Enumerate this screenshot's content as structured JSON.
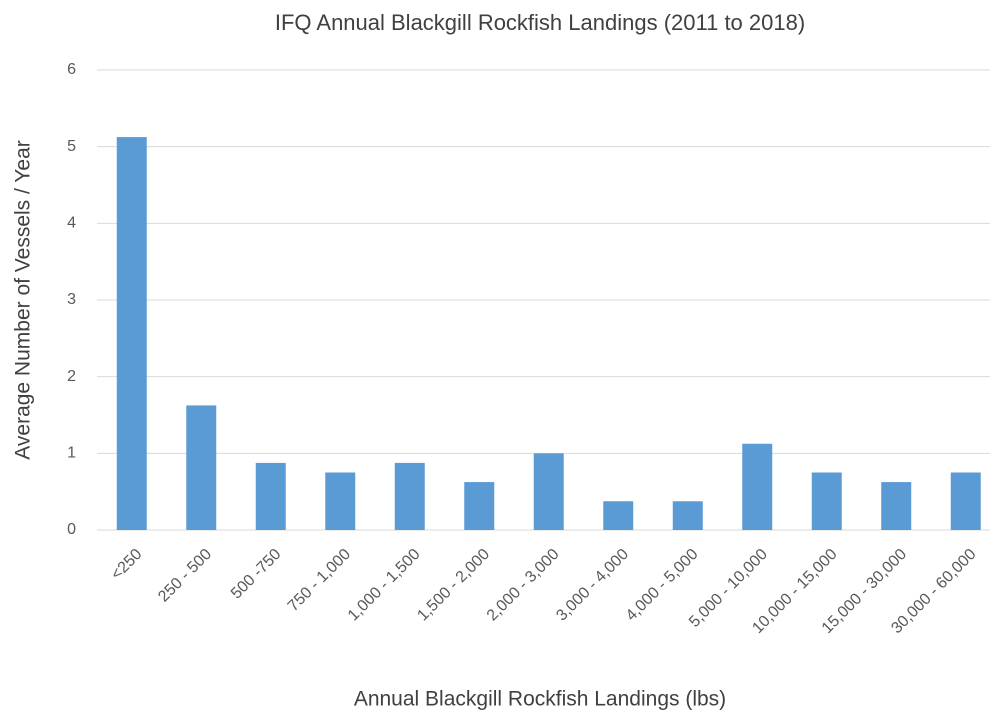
{
  "chart_data": {
    "type": "bar",
    "title": "IFQ Annual Blackgill Rockfish Landings (2011 to 2018)",
    "x_label": "Annual Blackgill Rockfish Landings (lbs)",
    "y_label": "Average Number of Vessels / Year",
    "categories": [
      "<250",
      "250 - 500",
      "500 -750",
      "750 - 1,000",
      "1,000 - 1,500",
      "1,500 - 2,000",
      "2,000 - 3,000",
      "3,000 - 4,000",
      "4,000 - 5,000",
      "5,000 - 10,000",
      "10,000 - 15,000",
      "15,000 - 30,000",
      "30,000 - 60,000"
    ],
    "values": [
      5.125,
      1.625,
      0.875,
      0.75,
      0.875,
      0.625,
      1.0,
      0.375,
      0.375,
      1.125,
      0.75,
      0.625,
      0.75
    ],
    "color": "#5b9bd5",
    "ylim": [
      0,
      6
    ],
    "yticks": [
      0,
      1,
      2,
      3,
      4,
      5,
      6
    ],
    "grid": true
  }
}
